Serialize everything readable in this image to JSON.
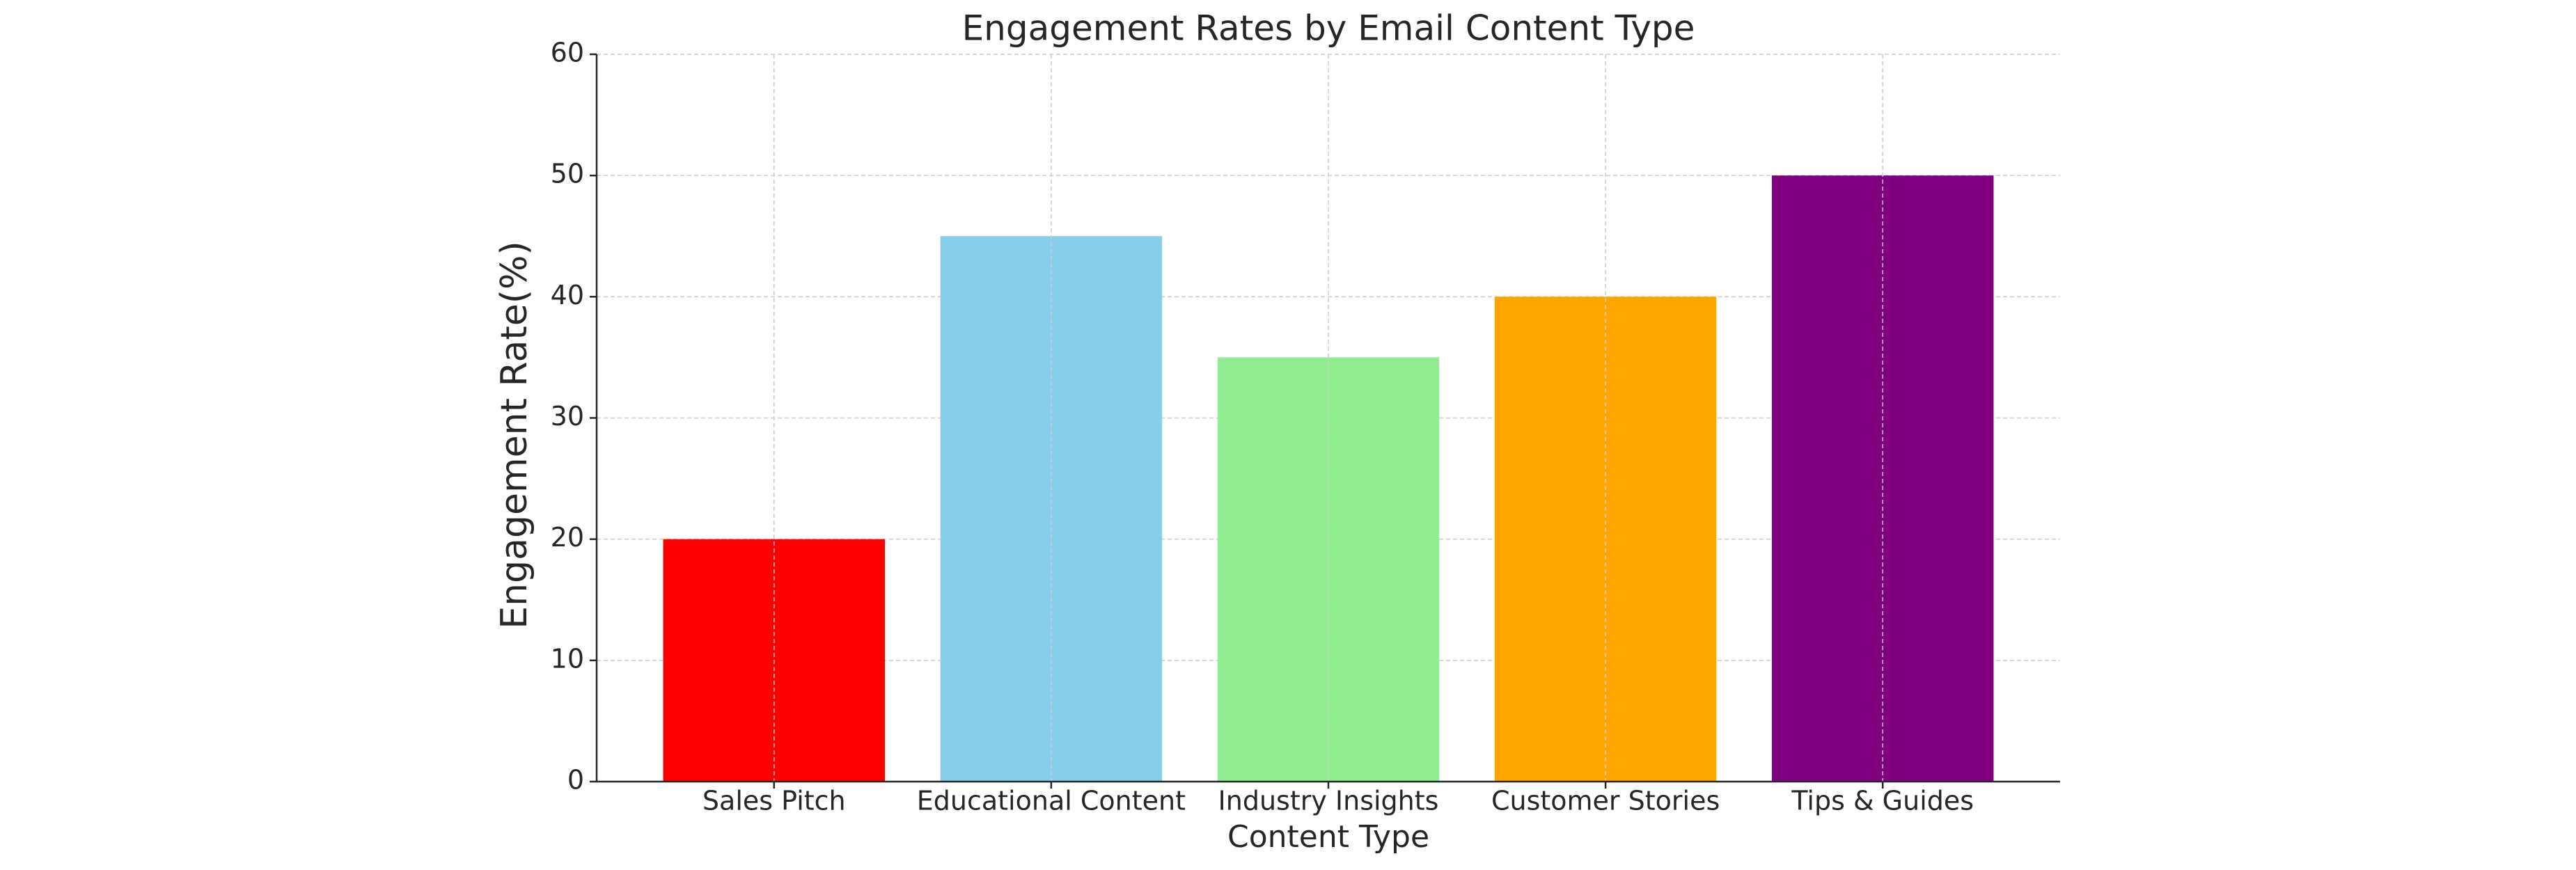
{
  "chart_data": {
    "type": "bar",
    "title": "Engagement Rates by Email Content Type",
    "x_label": "Content Type",
    "y_label": "Engagement Rate(%)",
    "categories": [
      "Sales Pitch",
      "Educational Content",
      "Industry Insights",
      "Customer Stories",
      "Tips & Guides"
    ],
    "values": [
      20,
      45,
      35,
      40,
      50
    ],
    "colors": [
      "#ff0000",
      "#87ceeb",
      "#90ee90",
      "#ffa500",
      "#800080"
    ],
    "ylim": [
      0,
      60
    ],
    "yticks": [
      0,
      10,
      20,
      30,
      40,
      50,
      60
    ],
    "grid": true
  }
}
